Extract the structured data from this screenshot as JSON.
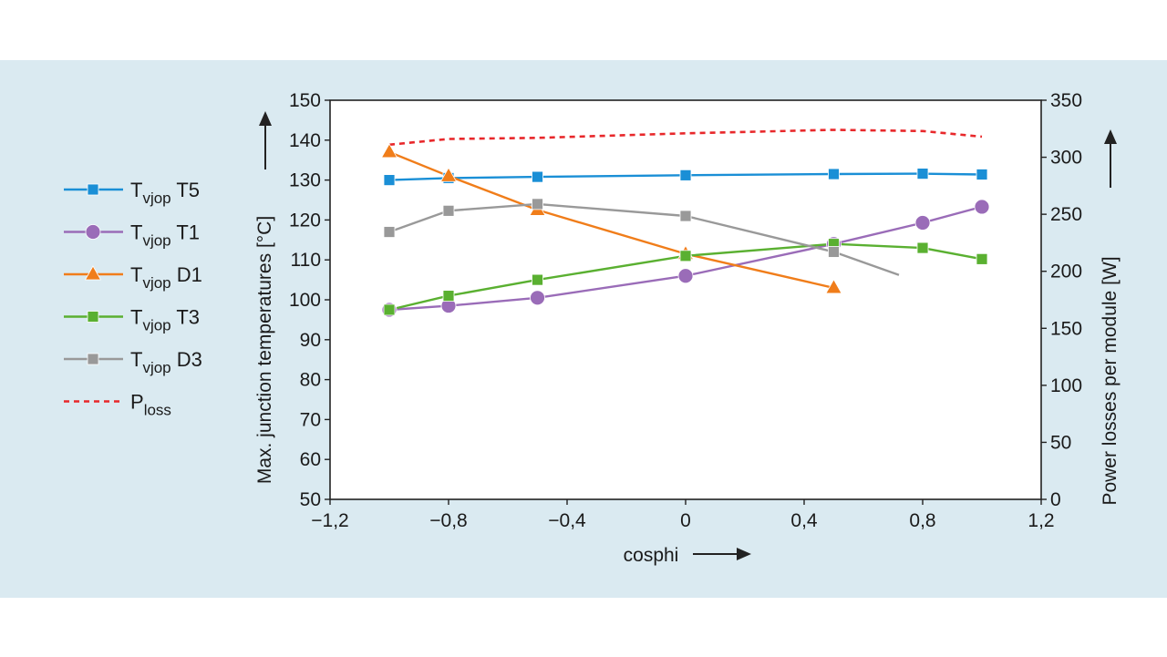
{
  "chart_data": {
    "type": "line",
    "xlabel": "cosphi",
    "ylabel_left": "Max. junction temperatures [°C]",
    "ylabel_right": "Power losses per module [W]",
    "xlim": [
      -1.2,
      1.2
    ],
    "ylim_left": [
      50,
      150
    ],
    "ylim_right": [
      0,
      350
    ],
    "x_ticks": [
      -1.2,
      -0.8,
      -0.4,
      0,
      0.4,
      0.8,
      1.2
    ],
    "x_tick_labels": [
      "−1,2",
      "−0,8",
      "−0,4",
      "0",
      "0,4",
      "0,8",
      "1,2"
    ],
    "y_ticks_left": [
      50,
      60,
      70,
      80,
      90,
      100,
      110,
      120,
      130,
      140,
      150
    ],
    "y_tick_labels_left": [
      "50",
      "60",
      "70",
      "80",
      "90",
      "100",
      "110",
      "120",
      "130",
      "140",
      "150"
    ],
    "y_ticks_right": [
      0,
      50,
      100,
      150,
      200,
      250,
      300,
      350
    ],
    "y_tick_labels_right": [
      "0",
      "50",
      "100",
      "150",
      "200",
      "250",
      "300",
      "350"
    ],
    "legend_position": "left-outside",
    "series": [
      {
        "name": "T5",
        "legend": {
          "main": "T",
          "sub": "vjop",
          "suffix": " T5"
        },
        "axis": "left",
        "color": "#1a8fd6",
        "marker": "square",
        "dashed": false,
        "x": [
          -1,
          -0.8,
          -0.5,
          0,
          0.5,
          0.8,
          1
        ],
        "y": [
          130,
          130.5,
          130.8,
          131.2,
          131.5,
          131.6,
          131.4
        ]
      },
      {
        "name": "T1",
        "legend": {
          "main": "T",
          "sub": "vjop",
          "suffix": " T1"
        },
        "axis": "left",
        "color": "#9a6cb8",
        "marker": "circle",
        "dashed": false,
        "x": [
          -1,
          -0.8,
          -0.5,
          0,
          0.5,
          0.8,
          1
        ],
        "y": [
          97.5,
          98.5,
          100.5,
          106,
          114,
          119.3,
          123.3
        ]
      },
      {
        "name": "D1",
        "legend": {
          "main": "T",
          "sub": "vjop",
          "suffix": " D1"
        },
        "axis": "left",
        "color": "#f07d1a",
        "marker": "triangle",
        "dashed": false,
        "x": [
          -1,
          -0.8,
          -0.5,
          0,
          0.5
        ],
        "y": [
          137,
          131,
          122.5,
          111.5,
          103
        ]
      },
      {
        "name": "T3",
        "legend": {
          "main": "T",
          "sub": "vjop",
          "suffix": " T3"
        },
        "axis": "left",
        "color": "#5ab031",
        "marker": "square",
        "dashed": false,
        "x": [
          -1,
          -0.8,
          -0.5,
          0,
          0.5,
          0.8,
          1
        ],
        "y": [
          97.5,
          101,
          105,
          111,
          114,
          113,
          110.2
        ]
      },
      {
        "name": "D3",
        "legend": {
          "main": "T",
          "sub": "vjop",
          "suffix": " D3"
        },
        "axis": "left",
        "color": "#999999",
        "marker": "square",
        "dashed": false,
        "x": [
          -1,
          -0.8,
          -0.5,
          0,
          0.5,
          0.72
        ],
        "y": [
          117,
          122.3,
          124,
          121,
          112,
          106.2
        ],
        "markers_at": [
          0,
          1,
          2,
          3,
          4
        ]
      },
      {
        "name": "loss",
        "legend": {
          "main": "P",
          "sub": "loss",
          "suffix": ""
        },
        "axis": "right",
        "color": "#e8282b",
        "marker": "none",
        "dashed": true,
        "x": [
          -1,
          -0.8,
          -0.5,
          0,
          0.5,
          0.8,
          1
        ],
        "y": [
          311,
          316,
          317,
          321,
          324,
          323,
          318
        ]
      }
    ]
  }
}
